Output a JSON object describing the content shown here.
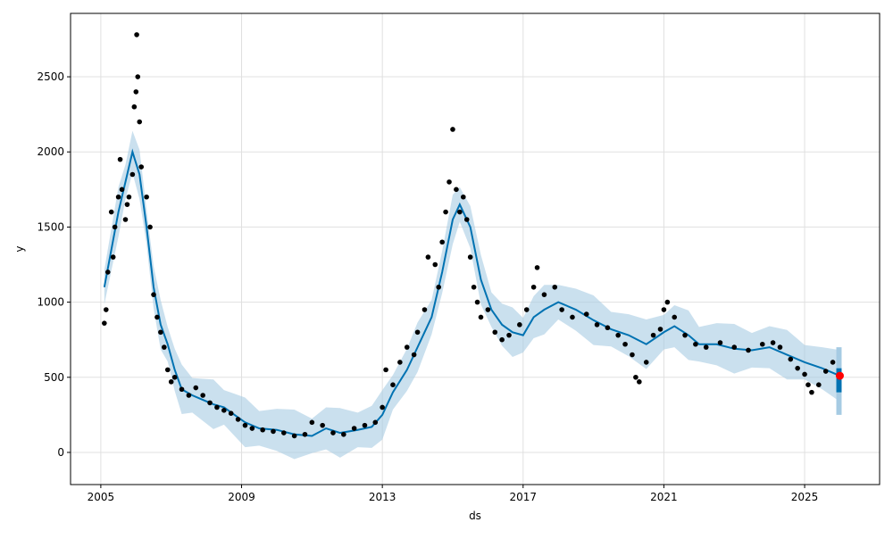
{
  "chart_data": {
    "type": "line",
    "title": "",
    "xlabel": "ds",
    "ylabel": "y",
    "xlim": [
      2004.14,
      2027.13
    ],
    "ylim": [
      -214,
      2922
    ],
    "grid": true,
    "xticks": [
      {
        "v": 2005,
        "label": "2005"
      },
      {
        "v": 2009,
        "label": "2009"
      },
      {
        "v": 2013,
        "label": "2013"
      },
      {
        "v": 2017,
        "label": "2017"
      },
      {
        "v": 2021,
        "label": "2021"
      },
      {
        "v": 2025,
        "label": "2025"
      }
    ],
    "yticks": [
      {
        "v": 0,
        "label": "0"
      },
      {
        "v": 500,
        "label": "500"
      },
      {
        "v": 1000,
        "label": "1000"
      },
      {
        "v": 1500,
        "label": "1500"
      },
      {
        "v": 2000,
        "label": "2000"
      },
      {
        "v": 2500,
        "label": "2500"
      }
    ],
    "band_halfwidth": 140,
    "colors": {
      "forecast": "#0072B2",
      "band": "#a6cbe3",
      "observed": "#000000",
      "highlight": "#ff0000"
    },
    "forecast": [
      [
        2005.1,
        1100
      ],
      [
        2005.3,
        1350
      ],
      [
        2005.5,
        1600
      ],
      [
        2005.7,
        1800
      ],
      [
        2005.9,
        2000
      ],
      [
        2006.1,
        1850
      ],
      [
        2006.3,
        1500
      ],
      [
        2006.5,
        1100
      ],
      [
        2006.7,
        850
      ],
      [
        2006.9,
        720
      ],
      [
        2007.1,
        550
      ],
      [
        2007.3,
        420
      ],
      [
        2007.6,
        380
      ],
      [
        2007.9,
        350
      ],
      [
        2008.2,
        320
      ],
      [
        2008.5,
        300
      ],
      [
        2008.8,
        250
      ],
      [
        2009.1,
        200
      ],
      [
        2009.5,
        160
      ],
      [
        2010.0,
        150
      ],
      [
        2010.5,
        120
      ],
      [
        2011.0,
        110
      ],
      [
        2011.4,
        160
      ],
      [
        2011.8,
        130
      ],
      [
        2012.3,
        150
      ],
      [
        2012.7,
        170
      ],
      [
        2013.0,
        250
      ],
      [
        2013.3,
        400
      ],
      [
        2013.7,
        550
      ],
      [
        2014.0,
        700
      ],
      [
        2014.4,
        900
      ],
      [
        2014.7,
        1200
      ],
      [
        2015.0,
        1550
      ],
      [
        2015.2,
        1650
      ],
      [
        2015.5,
        1500
      ],
      [
        2015.8,
        1150
      ],
      [
        2016.1,
        950
      ],
      [
        2016.4,
        850
      ],
      [
        2016.7,
        800
      ],
      [
        2017.0,
        780
      ],
      [
        2017.3,
        900
      ],
      [
        2017.6,
        950
      ],
      [
        2018.0,
        1000
      ],
      [
        2018.5,
        950
      ],
      [
        2019.0,
        880
      ],
      [
        2019.5,
        820
      ],
      [
        2020.0,
        780
      ],
      [
        2020.5,
        720
      ],
      [
        2021.0,
        800
      ],
      [
        2021.3,
        840
      ],
      [
        2021.7,
        780
      ],
      [
        2022.0,
        720
      ],
      [
        2022.5,
        720
      ],
      [
        2023.0,
        690
      ],
      [
        2023.5,
        680
      ],
      [
        2024.0,
        700
      ],
      [
        2024.5,
        650
      ],
      [
        2025.0,
        600
      ],
      [
        2025.5,
        560
      ],
      [
        2025.9,
        520
      ]
    ],
    "future_band": {
      "x": [
        2025.9,
        2026.0
      ],
      "yhat": [
        520,
        500
      ],
      "lower": [
        250,
        250
      ],
      "upper": [
        700,
        700
      ]
    },
    "observed": [
      [
        2005.1,
        860
      ],
      [
        2005.15,
        950
      ],
      [
        2005.2,
        1200
      ],
      [
        2005.3,
        1600
      ],
      [
        2005.35,
        1300
      ],
      [
        2005.4,
        1500
      ],
      [
        2005.5,
        1700
      ],
      [
        2005.55,
        1950
      ],
      [
        2005.6,
        1750
      ],
      [
        2005.7,
        1550
      ],
      [
        2005.75,
        1650
      ],
      [
        2005.8,
        1700
      ],
      [
        2005.9,
        1850
      ],
      [
        2005.95,
        2300
      ],
      [
        2006.0,
        2400
      ],
      [
        2006.02,
        2780
      ],
      [
        2006.05,
        2500
      ],
      [
        2006.1,
        2200
      ],
      [
        2006.15,
        1900
      ],
      [
        2006.3,
        1700
      ],
      [
        2006.4,
        1500
      ],
      [
        2006.5,
        1050
      ],
      [
        2006.6,
        900
      ],
      [
        2006.7,
        800
      ],
      [
        2006.8,
        700
      ],
      [
        2006.9,
        550
      ],
      [
        2007.0,
        470
      ],
      [
        2007.1,
        500
      ],
      [
        2007.3,
        420
      ],
      [
        2007.5,
        380
      ],
      [
        2007.7,
        430
      ],
      [
        2007.9,
        380
      ],
      [
        2008.1,
        330
      ],
      [
        2008.3,
        300
      ],
      [
        2008.5,
        280
      ],
      [
        2008.7,
        260
      ],
      [
        2008.9,
        220
      ],
      [
        2009.1,
        180
      ],
      [
        2009.3,
        160
      ],
      [
        2009.6,
        150
      ],
      [
        2009.9,
        140
      ],
      [
        2010.2,
        130
      ],
      [
        2010.5,
        110
      ],
      [
        2010.8,
        120
      ],
      [
        2011.0,
        200
      ],
      [
        2011.3,
        180
      ],
      [
        2011.6,
        130
      ],
      [
        2011.9,
        120
      ],
      [
        2012.2,
        160
      ],
      [
        2012.5,
        180
      ],
      [
        2012.8,
        200
      ],
      [
        2013.0,
        300
      ],
      [
        2013.1,
        550
      ],
      [
        2013.3,
        450
      ],
      [
        2013.5,
        600
      ],
      [
        2013.7,
        700
      ],
      [
        2013.9,
        650
      ],
      [
        2014.0,
        800
      ],
      [
        2014.2,
        950
      ],
      [
        2014.3,
        1300
      ],
      [
        2014.5,
        1250
      ],
      [
        2014.6,
        1100
      ],
      [
        2014.7,
        1400
      ],
      [
        2014.8,
        1600
      ],
      [
        2014.9,
        1800
      ],
      [
        2015.0,
        2150
      ],
      [
        2015.1,
        1750
      ],
      [
        2015.2,
        1600
      ],
      [
        2015.3,
        1700
      ],
      [
        2015.4,
        1550
      ],
      [
        2015.5,
        1300
      ],
      [
        2015.6,
        1100
      ],
      [
        2015.7,
        1000
      ],
      [
        2015.8,
        900
      ],
      [
        2016.0,
        950
      ],
      [
        2016.2,
        800
      ],
      [
        2016.4,
        750
      ],
      [
        2016.6,
        780
      ],
      [
        2016.9,
        850
      ],
      [
        2017.1,
        950
      ],
      [
        2017.3,
        1100
      ],
      [
        2017.4,
        1230
      ],
      [
        2017.6,
        1050
      ],
      [
        2017.9,
        1100
      ],
      [
        2018.1,
        950
      ],
      [
        2018.4,
        900
      ],
      [
        2018.8,
        920
      ],
      [
        2019.1,
        850
      ],
      [
        2019.4,
        830
      ],
      [
        2019.7,
        780
      ],
      [
        2019.9,
        720
      ],
      [
        2020.1,
        650
      ],
      [
        2020.2,
        500
      ],
      [
        2020.3,
        470
      ],
      [
        2020.5,
        600
      ],
      [
        2020.7,
        780
      ],
      [
        2020.9,
        820
      ],
      [
        2021.0,
        950
      ],
      [
        2021.1,
        1000
      ],
      [
        2021.3,
        900
      ],
      [
        2021.6,
        780
      ],
      [
        2021.9,
        720
      ],
      [
        2022.2,
        700
      ],
      [
        2022.6,
        730
      ],
      [
        2023.0,
        700
      ],
      [
        2023.4,
        680
      ],
      [
        2023.8,
        720
      ],
      [
        2024.1,
        730
      ],
      [
        2024.3,
        700
      ],
      [
        2024.6,
        620
      ],
      [
        2024.8,
        560
      ],
      [
        2025.0,
        520
      ],
      [
        2025.1,
        450
      ],
      [
        2025.2,
        400
      ],
      [
        2025.4,
        450
      ],
      [
        2025.6,
        540
      ],
      [
        2025.8,
        600
      ]
    ],
    "highlight_point": [
      2026.0,
      510
    ]
  }
}
